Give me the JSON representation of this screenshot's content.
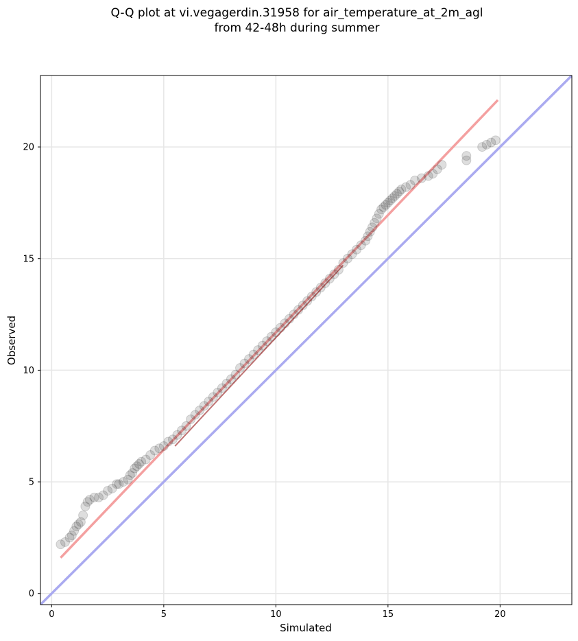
{
  "chart_data": {
    "type": "scatter",
    "title": "Q-Q plot at vi.vegagerdin.31958 for air_temperature_at_2m_agl",
    "subtitle": "from 42-48h during summer",
    "xlabel": "Simulated",
    "ylabel": "Observed",
    "xlim": [
      -0.5,
      23.2
    ],
    "ylim": [
      -0.5,
      23.2
    ],
    "xticks": [
      0,
      5,
      10,
      15,
      20
    ],
    "yticks": [
      0,
      5,
      10,
      15,
      20
    ],
    "grid": true,
    "series": [
      {
        "kind": "quantile-points",
        "x": [
          0.4,
          0.6,
          0.8,
          0.9,
          1.0,
          1.1,
          1.2,
          1.3,
          1.4,
          1.5,
          1.6,
          1.7,
          1.9,
          2.1,
          2.3,
          2.5,
          2.7,
          2.9,
          3.0,
          3.2,
          3.4,
          3.5,
          3.6,
          3.7,
          3.8,
          3.9,
          4.0,
          4.2,
          4.4,
          4.6,
          4.8,
          5.0,
          5.2,
          5.4,
          5.6,
          5.8,
          6.0,
          6.2,
          6.4,
          6.6,
          6.8,
          7.0,
          7.2,
          7.4,
          7.6,
          7.8,
          8.0,
          8.2,
          8.4,
          8.6,
          8.8,
          9.0,
          9.2,
          9.4,
          9.6,
          9.8,
          10.0,
          10.2,
          10.4,
          10.6,
          10.8,
          11.0,
          11.2,
          11.4,
          11.6,
          11.8,
          12.0,
          12.2,
          12.4,
          12.6,
          12.8,
          13.0,
          13.2,
          13.4,
          13.6,
          13.8,
          14.0,
          14.1,
          14.2,
          14.3,
          14.4,
          14.5,
          14.6,
          14.7,
          14.8,
          14.9,
          15.0,
          15.1,
          15.2,
          15.3,
          15.4,
          15.5,
          15.6,
          15.8,
          16.0,
          16.2,
          16.5,
          16.8,
          17.0,
          17.2,
          17.4,
          18.5,
          18.5,
          19.2,
          19.4,
          19.6,
          19.8
        ],
        "y": [
          2.2,
          2.3,
          2.5,
          2.6,
          2.8,
          3.0,
          3.1,
          3.2,
          3.5,
          3.9,
          4.1,
          4.2,
          4.3,
          4.3,
          4.4,
          4.6,
          4.7,
          4.9,
          4.9,
          5.0,
          5.1,
          5.3,
          5.4,
          5.6,
          5.7,
          5.8,
          5.9,
          6.0,
          6.2,
          6.4,
          6.5,
          6.6,
          6.8,
          6.9,
          7.1,
          7.3,
          7.5,
          7.8,
          8.0,
          8.2,
          8.4,
          8.6,
          8.8,
          9.0,
          9.2,
          9.4,
          9.6,
          9.8,
          10.1,
          10.3,
          10.5,
          10.7,
          10.9,
          11.1,
          11.3,
          11.5,
          11.7,
          11.9,
          12.1,
          12.3,
          12.5,
          12.7,
          12.9,
          13.1,
          13.3,
          13.5,
          13.7,
          13.9,
          14.1,
          14.3,
          14.5,
          14.8,
          15.0,
          15.2,
          15.4,
          15.6,
          15.8,
          16.0,
          16.2,
          16.4,
          16.6,
          16.8,
          17.0,
          17.2,
          17.3,
          17.4,
          17.5,
          17.6,
          17.7,
          17.8,
          17.9,
          18.0,
          18.1,
          18.2,
          18.3,
          18.5,
          18.6,
          18.7,
          18.8,
          19.0,
          19.2,
          19.4,
          19.6,
          20.0,
          20.1,
          20.2,
          20.3
        ]
      },
      {
        "kind": "fit-line",
        "x": [
          0.4,
          19.9
        ],
        "y": [
          1.6,
          22.1
        ],
        "color": "#f4a0a0"
      },
      {
        "kind": "reference-line",
        "x": [
          -0.5,
          23.2
        ],
        "y": [
          -0.5,
          23.2
        ],
        "color": "#aaaaf0"
      }
    ],
    "point_color": "#000000",
    "highlight_color": "#8b0000"
  }
}
